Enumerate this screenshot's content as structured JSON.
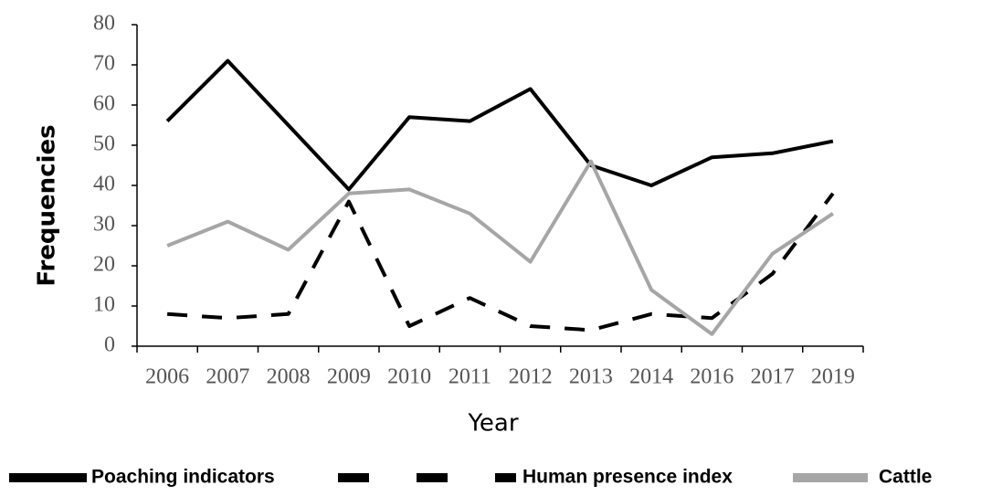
{
  "chart_data": {
    "type": "line",
    "y_label": "Frequencies",
    "x_label": "Year",
    "categories": [
      "2006",
      "2007",
      "2008",
      "2009",
      "2010",
      "2011",
      "2012",
      "2013",
      "2014",
      "2016",
      "2017",
      "2019"
    ],
    "series": [
      {
        "name": "Poaching indicators",
        "color": "#000000",
        "dash": "solid",
        "values": [
          56,
          71,
          55,
          39,
          57,
          56,
          64,
          45,
          40,
          47,
          48,
          51
        ]
      },
      {
        "name": "Human presence index",
        "color": "#000000",
        "dash": "dashed",
        "values": [
          8,
          7,
          8,
          36,
          5,
          12,
          5,
          4,
          8,
          7,
          18,
          38
        ]
      },
      {
        "name": "Cattle",
        "color": "#a6a6a6",
        "dash": "solid",
        "values": [
          25,
          31,
          24,
          38,
          39,
          33,
          21,
          46,
          14,
          3,
          23,
          33
        ]
      }
    ],
    "ylim": [
      0,
      80
    ],
    "yticks": [
      0,
      10,
      20,
      30,
      40,
      50,
      60,
      70,
      80
    ],
    "grid": false,
    "legend": "bottom"
  }
}
